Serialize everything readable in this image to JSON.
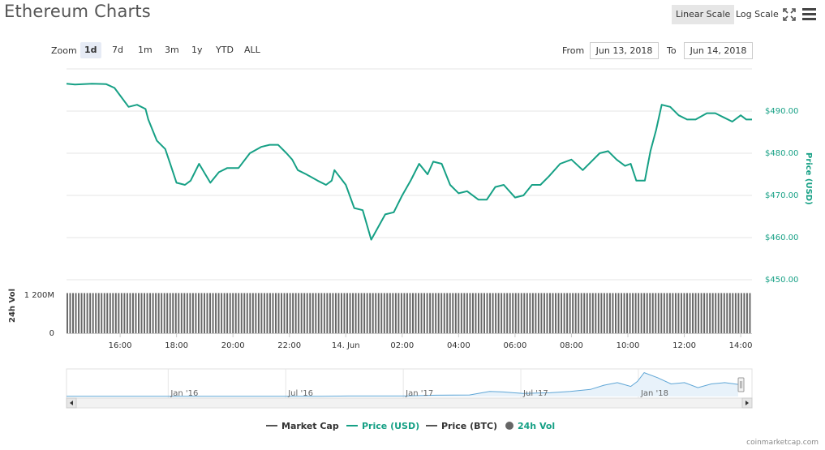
{
  "title": "Ethereum Charts",
  "toolbar": {
    "linear_scale": "Linear Scale",
    "log_scale": "Log Scale",
    "fullscreen_icon": "fullscreen-icon",
    "menu_icon": "hamburger-menu-icon"
  },
  "zoom": {
    "label": "Zoom",
    "buttons": [
      "1d",
      "7d",
      "1m",
      "3m",
      "1y",
      "YTD",
      "ALL"
    ],
    "active": "1d"
  },
  "range": {
    "from_label": "From",
    "from_value": "Jun 13, 2018",
    "to_label": "To",
    "to_value": "Jun 14, 2018"
  },
  "chart_data": {
    "type": "line",
    "x_tick_labels": [
      "16:00",
      "18:00",
      "20:00",
      "22:00",
      "14. Jun",
      "02:00",
      "04:00",
      "06:00",
      "08:00",
      "10:00",
      "12:00",
      "14:00"
    ],
    "x_tick_hours": [
      16,
      18,
      20,
      22,
      24,
      26,
      28,
      30,
      32,
      34,
      36,
      38
    ],
    "x_range_hours": [
      14.1,
      38.4
    ],
    "price_axis": {
      "title": "Price (USD)",
      "ticks": [
        "$450.00",
        "$460.00",
        "$470.00",
        "$480.00",
        "$490.00"
      ],
      "tick_values": [
        450,
        460,
        470,
        480,
        490
      ],
      "ylim": [
        450,
        500
      ],
      "color": "#16a085"
    },
    "volume_axis": {
      "title": "24h Vol",
      "ticks": [
        "0",
        "1 200M"
      ],
      "tick_values": [
        0,
        1200
      ],
      "ylim": [
        0,
        1500
      ],
      "bar_count": 240,
      "value_millions": 1260,
      "color": "#666666"
    },
    "series": [
      {
        "name": "Price (USD)",
        "color": "#16a085",
        "x": [
          14.1,
          14.4,
          15.0,
          15.5,
          15.8,
          16.3,
          16.6,
          16.9,
          17.0,
          17.3,
          17.6,
          17.8,
          18.0,
          18.3,
          18.5,
          18.8,
          19.2,
          19.5,
          19.8,
          20.2,
          20.6,
          21.0,
          21.3,
          21.6,
          21.9,
          22.1,
          22.3,
          22.6,
          23.0,
          23.3,
          23.5,
          23.6,
          24.0,
          24.3,
          24.6,
          24.9,
          25.4,
          25.7,
          26.0,
          26.3,
          26.6,
          26.9,
          27.1,
          27.4,
          27.7,
          28.0,
          28.3,
          28.7,
          29.0,
          29.3,
          29.6,
          30.0,
          30.3,
          30.6,
          30.9,
          31.2,
          31.6,
          32.0,
          32.4,
          32.7,
          33.0,
          33.3,
          33.6,
          33.9,
          34.1,
          34.3,
          34.6,
          34.8,
          35.0,
          35.2,
          35.5,
          35.8,
          36.1,
          36.4,
          36.8,
          37.1,
          37.4,
          37.7,
          38.0,
          38.2,
          38.4
        ],
        "values": [
          496.5,
          496.3,
          496.5,
          496.4,
          495.5,
          491.0,
          491.5,
          490.5,
          488.0,
          483.0,
          481.0,
          477.0,
          473.0,
          472.5,
          473.5,
          477.5,
          473.0,
          475.5,
          476.5,
          476.5,
          480.0,
          481.5,
          482.0,
          482.0,
          480.0,
          478.5,
          476.0,
          475.0,
          473.5,
          472.5,
          473.5,
          476.0,
          472.5,
          467.0,
          466.5,
          459.5,
          465.5,
          466.0,
          470.0,
          473.5,
          477.5,
          475.0,
          478.0,
          477.5,
          472.5,
          470.5,
          471.0,
          469.0,
          469.0,
          472.0,
          472.5,
          469.5,
          470.0,
          472.5,
          472.5,
          474.5,
          477.5,
          478.5,
          476.0,
          478.0,
          480.0,
          480.5,
          478.5,
          477.0,
          477.5,
          473.5,
          473.5,
          480.5,
          485.5,
          491.5,
          491.0,
          489.0,
          488.0,
          488.0,
          489.5,
          489.5,
          488.5,
          487.5,
          489.0,
          488.0,
          488.0
        ]
      },
      {
        "name": "24h Vol",
        "color": "#666666"
      }
    ],
    "navigator": {
      "labels": [
        "Jan '16",
        "Jul '16",
        "Jan '17",
        "Jul '17",
        "Jan '18"
      ],
      "line_color": "#5fa6d6",
      "fill_color": "#e8f2fa",
      "x": [
        0.0,
        0.1,
        0.2,
        0.3,
        0.38,
        0.42,
        0.5,
        0.55,
        0.6,
        0.63,
        0.65,
        0.68,
        0.7,
        0.72,
        0.75,
        0.78,
        0.8,
        0.82,
        0.84,
        0.85,
        0.86,
        0.88,
        0.9,
        0.92,
        0.94,
        0.96,
        0.98,
        1.0
      ],
      "values": [
        0.01,
        0.01,
        0.01,
        0.01,
        0.01,
        0.02,
        0.02,
        0.05,
        0.06,
        0.2,
        0.18,
        0.12,
        0.14,
        0.15,
        0.2,
        0.28,
        0.45,
        0.55,
        0.4,
        0.6,
        0.95,
        0.75,
        0.5,
        0.55,
        0.35,
        0.5,
        0.55,
        0.48
      ]
    }
  },
  "legend": [
    {
      "label": "Market Cap",
      "color": "#555555",
      "shape": "line"
    },
    {
      "label": "Price (USD)",
      "color": "#16a085",
      "shape": "line"
    },
    {
      "label": "Price (BTC)",
      "color": "#555555",
      "shape": "line"
    },
    {
      "label": "24h Vol",
      "color": "#555555",
      "shape": "dot",
      "text_color": "#16a085"
    }
  ],
  "credit": "coinmarketcap.com"
}
